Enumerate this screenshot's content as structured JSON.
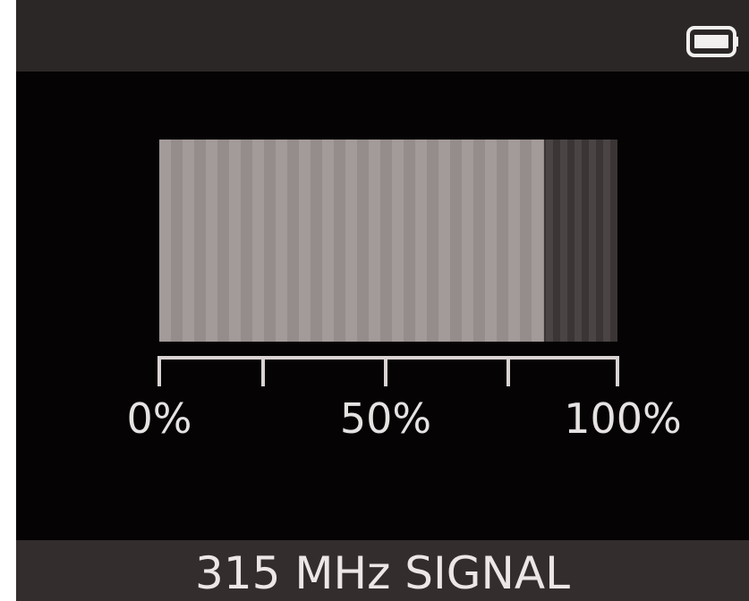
{
  "status_bar": {
    "icon": "battery-icon"
  },
  "signal_meter": {
    "level_fraction": 0.84,
    "scale": {
      "min_label": "0%",
      "mid_label": "50%",
      "max_label": "100%"
    }
  },
  "footer": {
    "label": "315 MHz SIGNAL"
  },
  "colors": {
    "screen_background": "#050304",
    "bar_background": "#2c2727",
    "meter_fill": "#a39b99",
    "meter_empty": "#4a4444",
    "text": "#ece7e6"
  }
}
